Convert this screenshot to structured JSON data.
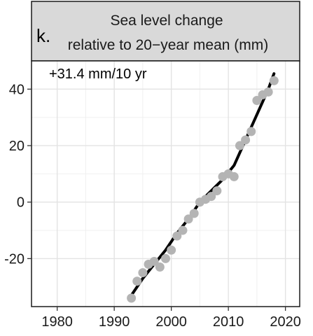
{
  "panel_letter": "k.",
  "chart_data": {
    "type": "scatter",
    "title": "Sea level change",
    "subtitle": "relative to 20−year mean (mm)",
    "annotation": "+31.4 mm/10 yr",
    "xlim": [
      1975.5,
      2022.5
    ],
    "ylim": [
      -37,
      50
    ],
    "x_ticks": [
      1980,
      1990,
      2000,
      2010,
      2020
    ],
    "y_ticks": [
      -20,
      0,
      20,
      40
    ],
    "y_tick_labels": [
      "-20",
      "0",
      "20",
      "40"
    ],
    "grid": true,
    "series": [
      {
        "type": "points",
        "color": "#b4b4b4",
        "x": [
          1993,
          1994,
          1995,
          1996,
          1997,
          1998,
          1999,
          2000,
          2001,
          2002,
          2003,
          2004,
          2005,
          2006,
          2007,
          2008,
          2009,
          2010,
          2011,
          2012,
          2013,
          2014,
          2015,
          2016,
          2017,
          2018
        ],
        "y": [
          -34,
          -28,
          -25,
          -22,
          -21,
          -23,
          -20,
          -17,
          -12,
          -10,
          -6,
          -4,
          0,
          1,
          2,
          4,
          9,
          10,
          9,
          20,
          22,
          25,
          36,
          38,
          39,
          43
        ]
      },
      {
        "type": "line",
        "color": "#000000",
        "x": [
          1993,
          1995,
          1997,
          1999,
          2001,
          2003,
          2005,
          2007,
          2009,
          2011,
          2013,
          2015,
          2017,
          2018
        ],
        "y": [
          -33,
          -27,
          -22,
          -17,
          -11,
          -6,
          0,
          4,
          8,
          13,
          22,
          31,
          40,
          45.5
        ]
      }
    ]
  }
}
